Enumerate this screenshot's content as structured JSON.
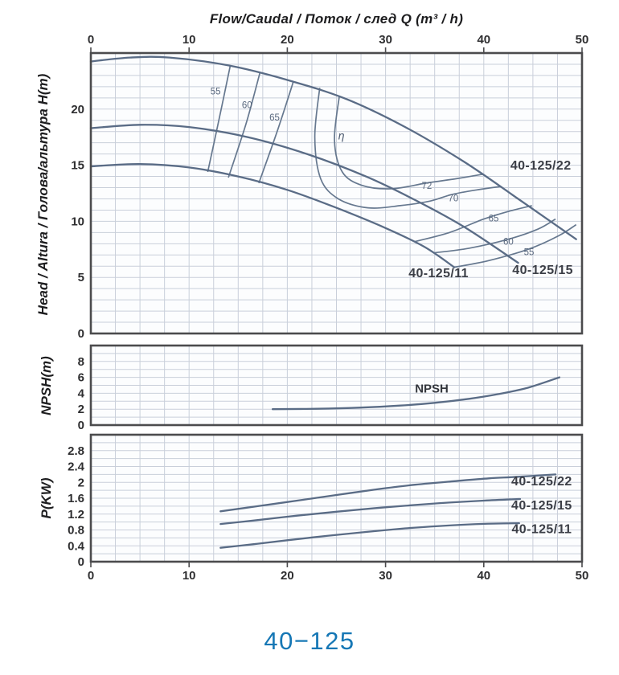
{
  "footer": {
    "title": "40−125"
  },
  "colors": {
    "curve": "#5a6c86",
    "efficiency_line": "#66788f",
    "grid": "#c9cfda",
    "border": "#4b4b4d",
    "tick_text": "#2e2e30",
    "title_blue": "#1577b5",
    "panel_bg": "#fcfdfe"
  },
  "chart_data": [
    {
      "id": "head",
      "type": "line",
      "xlabel": "Flow/Caudal  /  Поток / след   Q (m³ / h)",
      "ylabel": "Head / Altura  /  Голова/альтура H(m)",
      "xlim": [
        0,
        50
      ],
      "ylim": [
        0,
        25
      ],
      "xticks": [
        0,
        10,
        20,
        30,
        40,
        50
      ],
      "yticks": [
        0,
        5,
        10,
        15,
        20
      ],
      "x_grid": 2.5,
      "y_grid": 1,
      "xtick_side": "top",
      "grid": true,
      "series": [
        {
          "name": "40-125/22",
          "points": [
            [
              0,
              24.25
            ],
            [
              4,
              24.6
            ],
            [
              8,
              24.6
            ],
            [
              14,
              23.9
            ],
            [
              20,
              22.6
            ],
            [
              26,
              20.9
            ],
            [
              32,
              18.4
            ],
            [
              38,
              15.3
            ],
            [
              43.5,
              12.0
            ],
            [
              49.4,
              8.4
            ]
          ]
        },
        {
          "name": "40-125/15",
          "points": [
            [
              0,
              18.3
            ],
            [
              5,
              18.6
            ],
            [
              10,
              18.4
            ],
            [
              16,
              17.5
            ],
            [
              22,
              16.0
            ],
            [
              28,
              14.0
            ],
            [
              33,
              11.9
            ],
            [
              38,
              9.5
            ],
            [
              43.5,
              6.3
            ]
          ]
        },
        {
          "name": "40-125/11",
          "points": [
            [
              0,
              14.9
            ],
            [
              5,
              15.1
            ],
            [
              10,
              14.8
            ],
            [
              15,
              14.0
            ],
            [
              20,
              12.8
            ],
            [
              25,
              11.2
            ],
            [
              30,
              9.4
            ],
            [
              34,
              7.7
            ],
            [
              37,
              5.9
            ]
          ]
        }
      ],
      "efficiency_lines": [
        {
          "value": "55",
          "points": [
            [
              14.2,
              23.9
            ],
            [
              13.1,
              19.3
            ],
            [
              11.9,
              14.4
            ]
          ]
        },
        {
          "value": "60",
          "points": [
            [
              17.2,
              23.2
            ],
            [
              15.8,
              18.7
            ],
            [
              14.0,
              13.9
            ]
          ]
        },
        {
          "value": "65",
          "points": [
            [
              20.6,
              22.4
            ],
            [
              19.0,
              18.1
            ],
            [
              17.1,
              13.4
            ]
          ]
        },
        {
          "value": "70",
          "points": [
            [
              23.3,
              21.9
            ],
            [
              22.8,
              17.5
            ],
            [
              23.4,
              13.8
            ],
            [
              25.2,
              12.0
            ],
            [
              28.2,
              11.2
            ],
            [
              31.5,
              11.4
            ],
            [
              34.5,
              11.8
            ],
            [
              36.8,
              12.4
            ],
            [
              39.3,
              12.8
            ],
            [
              41.7,
              13.1
            ]
          ]
        },
        {
          "value": "72",
          "points": [
            [
              25.3,
              21.2
            ],
            [
              24.8,
              17.2
            ],
            [
              25.6,
              14.4
            ],
            [
              27.6,
              13.2
            ],
            [
              30.6,
              12.9
            ],
            [
              34.1,
              13.4
            ],
            [
              37.2,
              13.8
            ],
            [
              39.9,
              14.2
            ]
          ]
        },
        {
          "value": "65",
          "points": [
            [
              33.0,
              8.2
            ],
            [
              36.5,
              9.0
            ],
            [
              40.0,
              10.2
            ],
            [
              42.6,
              10.9
            ],
            [
              44.9,
              11.4
            ]
          ]
        },
        {
          "value": "60",
          "points": [
            [
              35.0,
              7.2
            ],
            [
              38.5,
              7.6
            ],
            [
              42.5,
              8.4
            ],
            [
              45.5,
              9.3
            ],
            [
              47.3,
              10.2
            ]
          ]
        },
        {
          "value": "55",
          "points": [
            [
              37.0,
              5.9
            ],
            [
              40.5,
              6.5
            ],
            [
              44.5,
              7.5
            ],
            [
              47.6,
              8.7
            ],
            [
              49.4,
              9.7
            ]
          ]
        }
      ],
      "annotations": [
        {
          "text": "55",
          "x": 12.7,
          "y": 21.3,
          "cls": "ann-eff"
        },
        {
          "text": "60",
          "x": 15.9,
          "y": 20.1,
          "cls": "ann-eff"
        },
        {
          "text": "65",
          "x": 18.7,
          "y": 19.0,
          "cls": "ann-eff"
        },
        {
          "text": "η",
          "x": 25.5,
          "y": 17.3,
          "cls": "ann-eta"
        },
        {
          "text": "72",
          "x": 34.2,
          "y": 12.9,
          "cls": "ann-eff"
        },
        {
          "text": "70",
          "x": 36.9,
          "y": 11.8,
          "cls": "ann-eff"
        },
        {
          "text": "65",
          "x": 41.0,
          "y": 10.0,
          "cls": "ann-eff"
        },
        {
          "text": "60",
          "x": 42.5,
          "y": 7.9,
          "cls": "ann-eff"
        },
        {
          "text": "55",
          "x": 44.6,
          "y": 7.0,
          "cls": "ann-eff"
        },
        {
          "text": "40-125/22",
          "x": 45.8,
          "y": 14.6,
          "cls": "ann-curve"
        },
        {
          "text": "40-125/15",
          "x": 46.0,
          "y": 5.3,
          "cls": "ann-curve"
        },
        {
          "text": "40-125/11",
          "x": 35.4,
          "y": 5.0,
          "cls": "ann-curve"
        }
      ]
    },
    {
      "id": "npsh",
      "type": "line",
      "ylabel": "NPSH(m)",
      "xlim": [
        0,
        50
      ],
      "ylim": [
        0,
        10
      ],
      "yticks": [
        0,
        2,
        4,
        6,
        8
      ],
      "x_grid": 2.5,
      "y_grid": 1,
      "grid": true,
      "series": [
        {
          "name": "NPSH",
          "points": [
            [
              18.5,
              2.0
            ],
            [
              23,
              2.05
            ],
            [
              27.5,
              2.2
            ],
            [
              31.5,
              2.45
            ],
            [
              35,
              2.8
            ],
            [
              38.5,
              3.3
            ],
            [
              41.5,
              3.9
            ],
            [
              44.5,
              4.7
            ],
            [
              47.7,
              6.0
            ]
          ]
        }
      ],
      "annotations": [
        {
          "text": "NPSH",
          "x": 34.7,
          "y": 4.1,
          "cls": "ann-npsh"
        }
      ]
    },
    {
      "id": "power",
      "type": "line",
      "ylabel": "P(KW)",
      "xlim": [
        0,
        50
      ],
      "ylim": [
        0,
        3.2
      ],
      "xticks": [
        0,
        10,
        20,
        30,
        40,
        50
      ],
      "yticks": [
        0,
        0.4,
        0.8,
        1.2,
        1.6,
        2,
        2.4,
        2.8
      ],
      "x_grid": 2.5,
      "y_grid": 0.2,
      "xtick_side": "bottom",
      "grid": true,
      "series": [
        {
          "name": "40-125/22",
          "points": [
            [
              13.2,
              1.27
            ],
            [
              17,
              1.4
            ],
            [
              21,
              1.54
            ],
            [
              25,
              1.68
            ],
            [
              29,
              1.82
            ],
            [
              33,
              1.94
            ],
            [
              37,
              2.03
            ],
            [
              40.5,
              2.1
            ],
            [
              43.5,
              2.14
            ],
            [
              47.3,
              2.2
            ]
          ]
        },
        {
          "name": "40-125/15",
          "points": [
            [
              13.2,
              0.95
            ],
            [
              17,
              1.05
            ],
            [
              21,
              1.16
            ],
            [
              25,
              1.26
            ],
            [
              29,
              1.35
            ],
            [
              33,
              1.43
            ],
            [
              36.5,
              1.49
            ],
            [
              40,
              1.54
            ],
            [
              43.7,
              1.58
            ]
          ]
        },
        {
          "name": "40-125/11",
          "points": [
            [
              13.2,
              0.35
            ],
            [
              16.5,
              0.44
            ],
            [
              20,
              0.54
            ],
            [
              24,
              0.65
            ],
            [
              28,
              0.75
            ],
            [
              32,
              0.84
            ],
            [
              35.5,
              0.9
            ],
            [
              38.5,
              0.94
            ],
            [
              41,
              0.96
            ],
            [
              43.6,
              0.97
            ]
          ]
        }
      ],
      "annotations": [
        {
          "text": "40-125/22",
          "x": 45.9,
          "y": 1.92,
          "cls": "ann-curve"
        },
        {
          "text": "40-125/15",
          "x": 45.9,
          "y": 1.32,
          "cls": "ann-curve"
        },
        {
          "text": "40-125/11",
          "x": 45.9,
          "y": 0.72,
          "cls": "ann-curve"
        }
      ]
    }
  ]
}
